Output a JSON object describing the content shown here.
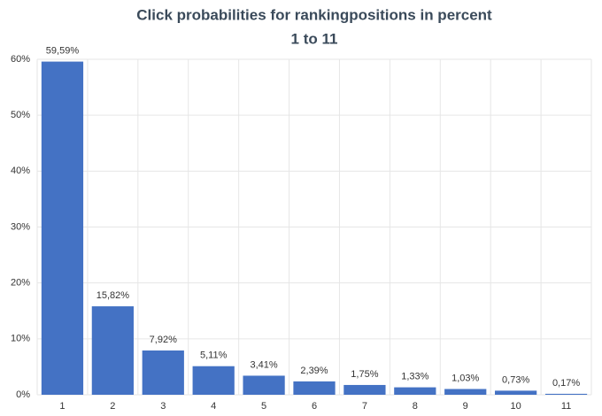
{
  "chart_data": {
    "type": "bar",
    "title": "Click probabilities for rankingpositions in percent",
    "subtitle": "1 to 11",
    "categories": [
      "1",
      "2",
      "3",
      "4",
      "5",
      "6",
      "7",
      "8",
      "9",
      "10",
      "11"
    ],
    "values": [
      59.59,
      15.82,
      7.92,
      5.11,
      3.41,
      2.39,
      1.75,
      1.33,
      1.03,
      0.73,
      0.17
    ],
    "value_labels": [
      "59,59%",
      "15,82%",
      "7,92%",
      "5,11%",
      "3,41%",
      "2,39%",
      "1,75%",
      "1,33%",
      "1,03%",
      "0,73%",
      "0,17%"
    ],
    "color": "#4472c4",
    "ylim": [
      0,
      60
    ],
    "yticks": [
      {
        "value": 0,
        "label": "0%"
      },
      {
        "value": 10,
        "label": "10%"
      },
      {
        "value": 20,
        "label": "20%"
      },
      {
        "value": 30,
        "label": "30%"
      },
      {
        "value": 40,
        "label": "40%"
      },
      {
        "value": 50,
        "label": "50%"
      },
      {
        "value": 60,
        "label": "60%"
      }
    ],
    "grid": true
  }
}
